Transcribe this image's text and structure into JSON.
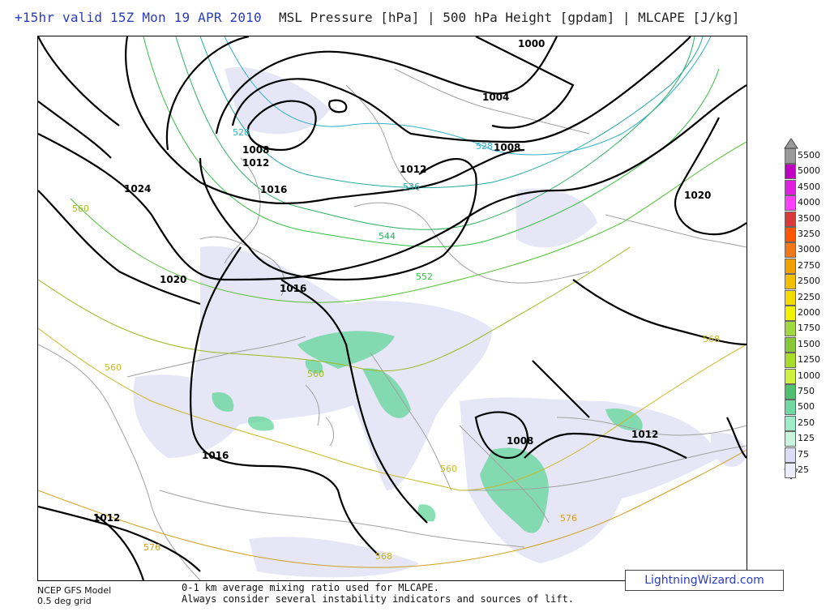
{
  "header": {
    "valid": "+15hr valid 15Z Mon 19 APR 2010",
    "fields": "MSL Pressure [hPa] | 500 hPa Height [gpdam] | MLCAPE [J/kg]"
  },
  "footer": {
    "model_line1": "NCEP GFS Model",
    "model_line2": "0.5 deg grid",
    "note_line1": "0-1 km average mixing ratio used for MLCAPE.",
    "note_line2": "Always consider several instability indicators and sources of lift."
  },
  "brand": "LightningWizard.com",
  "colors": {
    "header_blue": "#2a3cbf",
    "isobar": "#000000",
    "coast": "#999999",
    "cape_light": "#e6e6f7",
    "cape_green": "#62d69a"
  },
  "scale": {
    "items": [
      {
        "label": "5500",
        "color": "#999999"
      },
      {
        "label": "5000",
        "color": "#c000c0"
      },
      {
        "label": "4500",
        "color": "#e020e0"
      },
      {
        "label": "4000",
        "color": "#ff40ff"
      },
      {
        "label": "3500",
        "color": "#d83a3a"
      },
      {
        "label": "3250",
        "color": "#ff5500"
      },
      {
        "label": "3000",
        "color": "#f07818"
      },
      {
        "label": "2750",
        "color": "#f0a000"
      },
      {
        "label": "2500",
        "color": "#f0c000"
      },
      {
        "label": "2250",
        "color": "#f2dc00"
      },
      {
        "label": "2000",
        "color": "#f0f000"
      },
      {
        "label": "1750",
        "color": "#a0d840"
      },
      {
        "label": "1500",
        "color": "#88c838"
      },
      {
        "label": "1250",
        "color": "#a8dc28"
      },
      {
        "label": "1000",
        "color": "#d0f040"
      },
      {
        "label": "750",
        "color": "#50c070"
      },
      {
        "label": "500",
        "color": "#70d8a0"
      },
      {
        "label": "250",
        "color": "#a0ecc8"
      },
      {
        "label": "125",
        "color": "#c8f4e0"
      },
      {
        "label": "75",
        "color": "#dcdcf8"
      },
      {
        "label": "25",
        "color": "#ececfa"
      }
    ]
  },
  "isobar_labels": [
    "1000",
    "1004",
    "1008",
    "1008",
    "1012",
    "1012",
    "1016",
    "1016",
    "1016",
    "1020",
    "1020",
    "1024",
    "1008",
    "1012",
    "1012",
    "1016"
  ],
  "height_labels": [
    "528",
    "528",
    "536",
    "544",
    "552",
    "560",
    "560",
    "560",
    "568",
    "568",
    "576",
    "576",
    "560"
  ]
}
